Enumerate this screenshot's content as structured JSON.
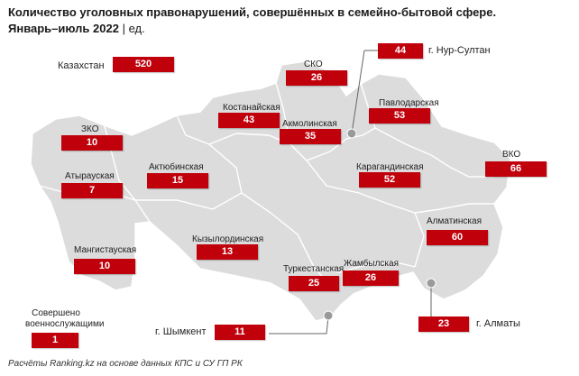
{
  "title": {
    "line1": "Количество уголовных правонарушений, совершённых в семейно-бытовой сфере.",
    "line2": "Январь–июль 2022",
    "unit": "| ед."
  },
  "colors": {
    "map_fill": "#dcdcdc",
    "border": "#ffffff",
    "value_box": "#c0000b"
  },
  "total": {
    "name": "Казахстан",
    "value": "520"
  },
  "regions": [
    {
      "key": "sko",
      "name": "СКО",
      "value": "26"
    },
    {
      "key": "kostanay",
      "name": "Костанайская",
      "value": "43"
    },
    {
      "key": "akmola",
      "name": "Акмолинская",
      "value": "35"
    },
    {
      "key": "pavlodar",
      "name": "Павлодарская",
      "value": "53"
    },
    {
      "key": "zko",
      "name": "ЗКО",
      "value": "10"
    },
    {
      "key": "atyrau",
      "name": "Атырауская",
      "value": "7"
    },
    {
      "key": "aktobe",
      "name": "Актюбинская",
      "value": "15"
    },
    {
      "key": "karaganda",
      "name": "Карагандинская",
      "value": "52"
    },
    {
      "key": "vko",
      "name": "ВКО",
      "value": "66"
    },
    {
      "key": "almaty_reg",
      "name": "Алматинская",
      "value": "60"
    },
    {
      "key": "kyzylorda",
      "name": "Кызылординская",
      "value": "13"
    },
    {
      "key": "mangystau",
      "name": "Мангистауская",
      "value": "10"
    },
    {
      "key": "turkestan",
      "name": "Туркестанская",
      "value": "25"
    },
    {
      "key": "zhambyl",
      "name": "Жамбылская",
      "value": "26"
    }
  ],
  "cities": [
    {
      "key": "nursultan",
      "name": "г. Нур-Султан",
      "value": "44"
    },
    {
      "key": "shymkent",
      "name": "г. Шымкент",
      "value": "11"
    },
    {
      "key": "almaty",
      "name": "г. Алматы",
      "value": "23"
    }
  ],
  "military": {
    "name_line1": "Совершено",
    "name_line2": "военнослужащими",
    "value": "1"
  },
  "footer": "Расчёты Ranking.kz на основе данных КПС и СУ ГП РК"
}
